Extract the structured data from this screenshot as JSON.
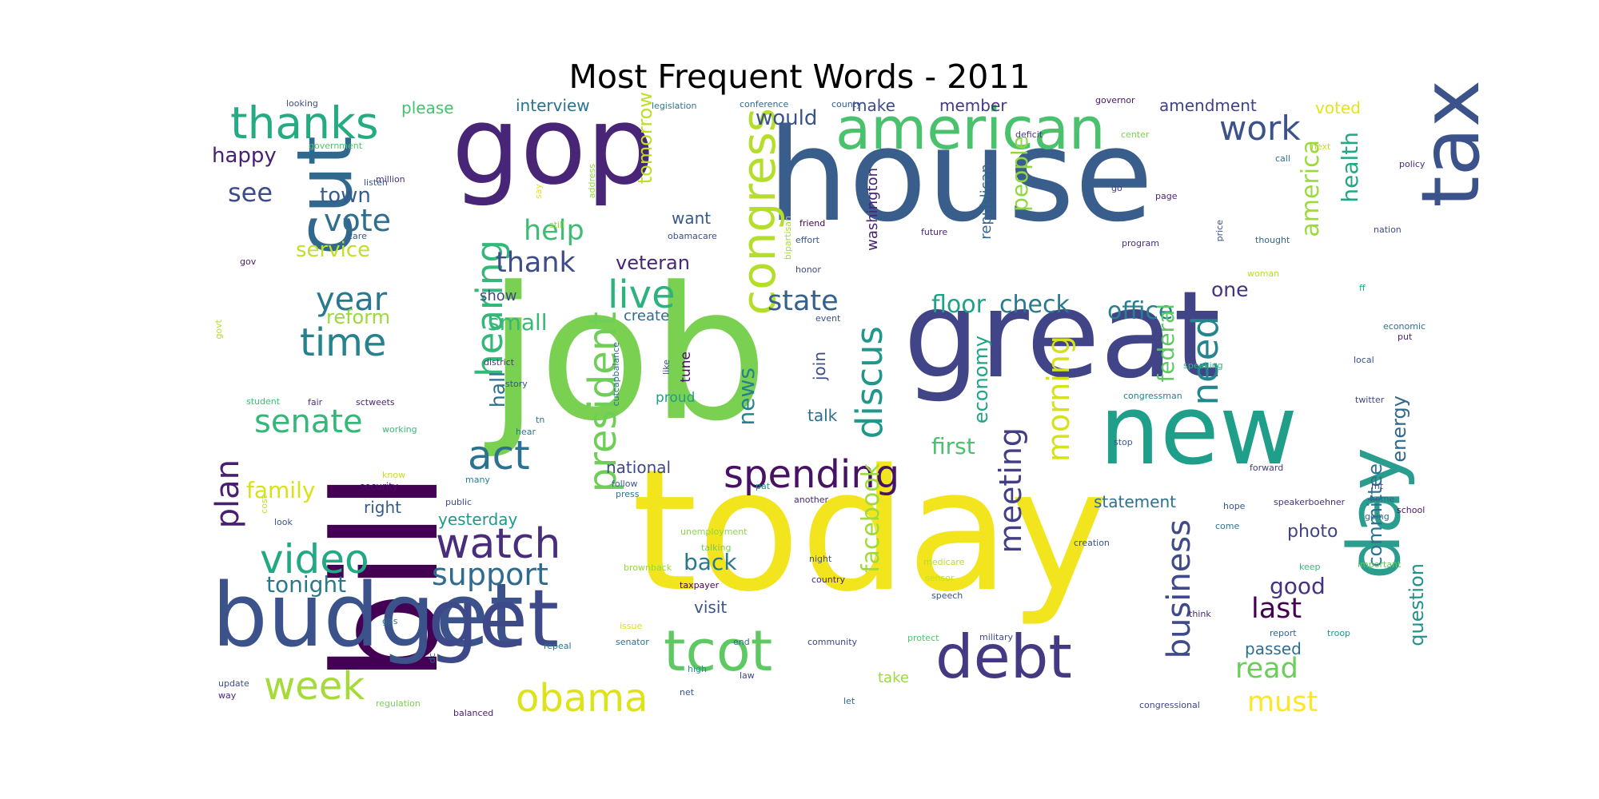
{
  "chart_data": {
    "type": "wordcloud",
    "title": "Most Frequent Words - 2011",
    "palette": "viridis",
    "words": [
      {
        "text": "job",
        "color": "#7ad151"
      },
      {
        "text": "today",
        "color": "#f2e51d"
      },
      {
        "text": "house",
        "color": "#3a5e8c"
      },
      {
        "text": "bill",
        "color": "#440154"
      },
      {
        "text": "great",
        "color": "#414487"
      },
      {
        "text": "gop",
        "color": "#482576"
      },
      {
        "text": "new",
        "color": "#1f9e89"
      },
      {
        "text": "budget",
        "color": "#3b528b"
      },
      {
        "text": "tax",
        "color": "#3b528b"
      },
      {
        "text": "cut",
        "color": "#31688e"
      },
      {
        "text": "day",
        "color": "#2a9d8f"
      },
      {
        "text": "get",
        "color": "#3e4989"
      },
      {
        "text": "american",
        "color": "#4ac16d"
      },
      {
        "text": "debt",
        "color": "#443983"
      },
      {
        "text": "tcot",
        "color": "#5ec962"
      },
      {
        "text": "spending",
        "color": "#471164"
      },
      {
        "text": "congress",
        "color": "#b5de2b"
      },
      {
        "text": "president",
        "color": "#6ece58"
      },
      {
        "text": "watch",
        "color": "#472d7b"
      },
      {
        "text": "thanks",
        "color": "#25ab82"
      },
      {
        "text": "video",
        "color": "#22a884"
      },
      {
        "text": "live",
        "color": "#2db27d"
      },
      {
        "text": "act",
        "color": "#2c728e"
      },
      {
        "text": "time",
        "color": "#26828e"
      },
      {
        "text": "week",
        "color": "#a5db36"
      },
      {
        "text": "obama",
        "color": "#dde318"
      },
      {
        "text": "business",
        "color": "#3e4a89"
      },
      {
        "text": "hearing",
        "color": "#35b779"
      },
      {
        "text": "plan",
        "color": "#481f70"
      },
      {
        "text": "year",
        "color": "#2a788e"
      },
      {
        "text": "senate",
        "color": "#35b779"
      },
      {
        "text": "state",
        "color": "#34618d"
      },
      {
        "text": "support",
        "color": "#2f6b8e"
      },
      {
        "text": "work",
        "color": "#3b528b"
      },
      {
        "text": "need",
        "color": "#25858e"
      },
      {
        "text": "discus",
        "color": "#1f978b"
      },
      {
        "text": "meeting",
        "color": "#433e85"
      },
      {
        "text": "morning",
        "color": "#d5e21a"
      },
      {
        "text": "vote",
        "color": "#2e6f8e"
      },
      {
        "text": "help",
        "color": "#3fbc73"
      },
      {
        "text": "thank",
        "color": "#3e4c8a"
      },
      {
        "text": "read",
        "color": "#6ccd5a"
      },
      {
        "text": "must",
        "color": "#fde725"
      },
      {
        "text": "last",
        "color": "#440154"
      },
      {
        "text": "facebook",
        "color": "#9fda3a"
      },
      {
        "text": "back",
        "color": "#2a778e"
      },
      {
        "text": "see",
        "color": "#3d4d8a"
      },
      {
        "text": "economy",
        "color": "#20a386"
      },
      {
        "text": "floor",
        "color": "#1fa188"
      },
      {
        "text": "check",
        "color": "#29798e"
      },
      {
        "text": "office",
        "color": "#27808e"
      },
      {
        "text": "federal",
        "color": "#5ec962"
      },
      {
        "text": "america",
        "color": "#9bd93c"
      },
      {
        "text": "health",
        "color": "#22a785"
      },
      {
        "text": "energy",
        "color": "#31688e"
      },
      {
        "text": "committee",
        "color": "#2c728e"
      },
      {
        "text": "question",
        "color": "#21918c"
      },
      {
        "text": "people",
        "color": "#90d743"
      },
      {
        "text": "tonight",
        "color": "#2a788e"
      },
      {
        "text": "family",
        "color": "#d8e219"
      },
      {
        "text": "first",
        "color": "#4ac16d"
      },
      {
        "text": "good",
        "color": "#46327e"
      },
      {
        "text": "news",
        "color": "#26828e"
      },
      {
        "text": "happy",
        "color": "#482173"
      },
      {
        "text": "town",
        "color": "#365c8d"
      },
      {
        "text": "reform",
        "color": "#9bd93c"
      },
      {
        "text": "small",
        "color": "#37b878"
      },
      {
        "text": "hall",
        "color": "#2d708e"
      },
      {
        "text": "service",
        "color": "#c2df23"
      },
      {
        "text": "veteran",
        "color": "#482677"
      },
      {
        "text": "tomorrow",
        "color": "#bddf26"
      },
      {
        "text": "would",
        "color": "#3b528b"
      },
      {
        "text": "american",
        "color": "#4ac16d"
      },
      {
        "text": "statement",
        "color": "#2d708e"
      },
      {
        "text": "photo",
        "color": "#414487"
      },
      {
        "text": "passed",
        "color": "#2e6d8e"
      },
      {
        "text": "one",
        "color": "#46337f"
      },
      {
        "text": "want",
        "color": "#38598c"
      },
      {
        "text": "republican",
        "color": "#31688e"
      },
      {
        "text": "washington",
        "color": "#482173"
      },
      {
        "text": "national",
        "color": "#3f4889"
      },
      {
        "text": "yesterday",
        "color": "#1f9a8a"
      },
      {
        "text": "right",
        "color": "#375a8c"
      },
      {
        "text": "talk",
        "color": "#2e6e8e"
      },
      {
        "text": "join",
        "color": "#3d4e8a"
      },
      {
        "text": "visit",
        "color": "#39558c"
      },
      {
        "text": "make",
        "color": "#3e4c8a"
      },
      {
        "text": "member",
        "color": "#443a83"
      },
      {
        "text": "amendment",
        "color": "#414287"
      },
      {
        "text": "interview",
        "color": "#2c728e"
      },
      {
        "text": "please",
        "color": "#46c06f"
      },
      {
        "text": "voted",
        "color": "#e5e419"
      },
      {
        "text": "show",
        "color": "#3f4889"
      },
      {
        "text": "create",
        "color": "#306a8e"
      },
      {
        "text": "tune",
        "color": "#471063"
      },
      {
        "text": "proud",
        "color": "#1f9e89"
      },
      {
        "text": "like",
        "color": "#3b528b"
      },
      {
        "text": "cutcapbalance",
        "color": "#2d708e"
      },
      {
        "text": "story",
        "color": "#3b528b"
      },
      {
        "text": "district",
        "color": "#443a83"
      },
      {
        "text": "tn",
        "color": "#2a778e"
      },
      {
        "text": "hear",
        "color": "#2a788e"
      },
      {
        "text": "many",
        "color": "#27808e"
      },
      {
        "text": "follow",
        "color": "#365d8d"
      },
      {
        "text": "press",
        "color": "#2c738e"
      },
      {
        "text": "public",
        "color": "#3b528b"
      },
      {
        "text": "security",
        "color": "#470e61"
      },
      {
        "text": "know",
        "color": "#c8e020"
      },
      {
        "text": "working",
        "color": "#38b977"
      },
      {
        "text": "sctweets",
        "color": "#482878"
      },
      {
        "text": "fair",
        "color": "#46327e"
      },
      {
        "text": "student",
        "color": "#3fbc73"
      },
      {
        "text": "govt",
        "color": "#b2dd2d"
      },
      {
        "text": "gov",
        "color": "#481b6d"
      },
      {
        "text": "looking",
        "color": "#3e4c8a"
      },
      {
        "text": "government",
        "color": "#50c46a"
      },
      {
        "text": "million",
        "color": "#472e7c"
      },
      {
        "text": "listen",
        "color": "#3b528b"
      },
      {
        "text": "care",
        "color": "#38598c"
      },
      {
        "text": "say",
        "color": "#e7e419"
      },
      {
        "text": "address",
        "color": "#93d741"
      },
      {
        "text": "still",
        "color": "#93d741"
      },
      {
        "text": "bipartisan",
        "color": "#a8db34"
      },
      {
        "text": "obamacare",
        "color": "#3e4c8a"
      },
      {
        "text": "friend",
        "color": "#440154"
      },
      {
        "text": "effort",
        "color": "#38598c"
      },
      {
        "text": "honor",
        "color": "#3e4989"
      },
      {
        "text": "event",
        "color": "#3b528b"
      },
      {
        "text": "future",
        "color": "#482475"
      },
      {
        "text": "legislation",
        "color": "#2a788e"
      },
      {
        "text": "conference",
        "color": "#31688e"
      },
      {
        "text": "county",
        "color": "#38588c"
      },
      {
        "text": "deficit",
        "color": "#453781"
      },
      {
        "text": "governor",
        "color": "#481668"
      },
      {
        "text": "center",
        "color": "#7ad151"
      },
      {
        "text": "call",
        "color": "#2e6f8e"
      },
      {
        "text": "next",
        "color": "#c2df23"
      },
      {
        "text": "go",
        "color": "#424086"
      },
      {
        "text": "page",
        "color": "#482878"
      },
      {
        "text": "price",
        "color": "#3b528b"
      },
      {
        "text": "program",
        "color": "#46327e"
      },
      {
        "text": "thought",
        "color": "#31688e"
      },
      {
        "text": "nation",
        "color": "#3e4c8a"
      },
      {
        "text": "policy",
        "color": "#482979"
      },
      {
        "text": "woman",
        "color": "#b8de29"
      },
      {
        "text": "ff",
        "color": "#25ab82"
      },
      {
        "text": "economic",
        "color": "#2c728e"
      },
      {
        "text": "put",
        "color": "#482576"
      },
      {
        "text": "local",
        "color": "#3b528b"
      },
      {
        "text": "speaking",
        "color": "#35b779"
      },
      {
        "text": "congressman",
        "color": "#26828e"
      },
      {
        "text": "twitter",
        "color": "#3e4989"
      },
      {
        "text": "stop",
        "color": "#38598c"
      },
      {
        "text": "forward",
        "color": "#443a83"
      },
      {
        "text": "mt",
        "color": "#3b528b"
      },
      {
        "text": "home",
        "color": "#31688e"
      },
      {
        "text": "school",
        "color": "#481769"
      },
      {
        "text": "going",
        "color": "#2e6e8e"
      },
      {
        "text": "speakerboehner",
        "color": "#46327e"
      },
      {
        "text": "hope",
        "color": "#3b528b"
      },
      {
        "text": "come",
        "color": "#2c738e"
      },
      {
        "text": "creation",
        "color": "#3b528b"
      },
      {
        "text": "keep",
        "color": "#38b977"
      },
      {
        "text": "important",
        "color": "#5ec962"
      },
      {
        "text": "think",
        "color": "#482878"
      },
      {
        "text": "report",
        "color": "#31688e"
      },
      {
        "text": "troop",
        "color": "#1f9e89"
      },
      {
        "text": "congressional",
        "color": "#414487"
      },
      {
        "text": "military",
        "color": "#3e4c8a"
      },
      {
        "text": "protect",
        "color": "#52c569"
      },
      {
        "text": "speech",
        "color": "#3b528b"
      },
      {
        "text": "sensor",
        "color": "#c2df23"
      },
      {
        "text": "medicare",
        "color": "#b5de2b"
      },
      {
        "text": "take",
        "color": "#9bd93c"
      },
      {
        "text": "let",
        "color": "#2e6e8e"
      },
      {
        "text": "law",
        "color": "#414487"
      },
      {
        "text": "high",
        "color": "#21918c"
      },
      {
        "text": "net",
        "color": "#3b528b"
      },
      {
        "text": "end",
        "color": "#31688e"
      },
      {
        "text": "community",
        "color": "#414487"
      },
      {
        "text": "country",
        "color": "#482878"
      },
      {
        "text": "night",
        "color": "#3b528b"
      },
      {
        "text": "another",
        "color": "#482475"
      },
      {
        "text": "unemployment",
        "color": "#8bd646"
      },
      {
        "text": "talking",
        "color": "#6ece58"
      },
      {
        "text": "taxpayer",
        "color": "#440154"
      },
      {
        "text": "brownback",
        "color": "#93d741"
      },
      {
        "text": "issue",
        "color": "#d8e219"
      },
      {
        "text": "senator",
        "color": "#2c728e"
      },
      {
        "text": "repeal",
        "color": "#2a788e"
      },
      {
        "text": "balanced",
        "color": "#482173"
      },
      {
        "text": "regulation",
        "color": "#7ad151"
      },
      {
        "text": "dc",
        "color": "#38598c"
      },
      {
        "text": "gas",
        "color": "#2e6e8e"
      },
      {
        "text": "update",
        "color": "#3e4c8a"
      },
      {
        "text": "way",
        "color": "#482878"
      },
      {
        "text": "look",
        "color": "#3b528b"
      },
      {
        "text": "cost",
        "color": "#c2df23"
      },
      {
        "text": "pat",
        "color": "#21918c"
      }
    ]
  }
}
